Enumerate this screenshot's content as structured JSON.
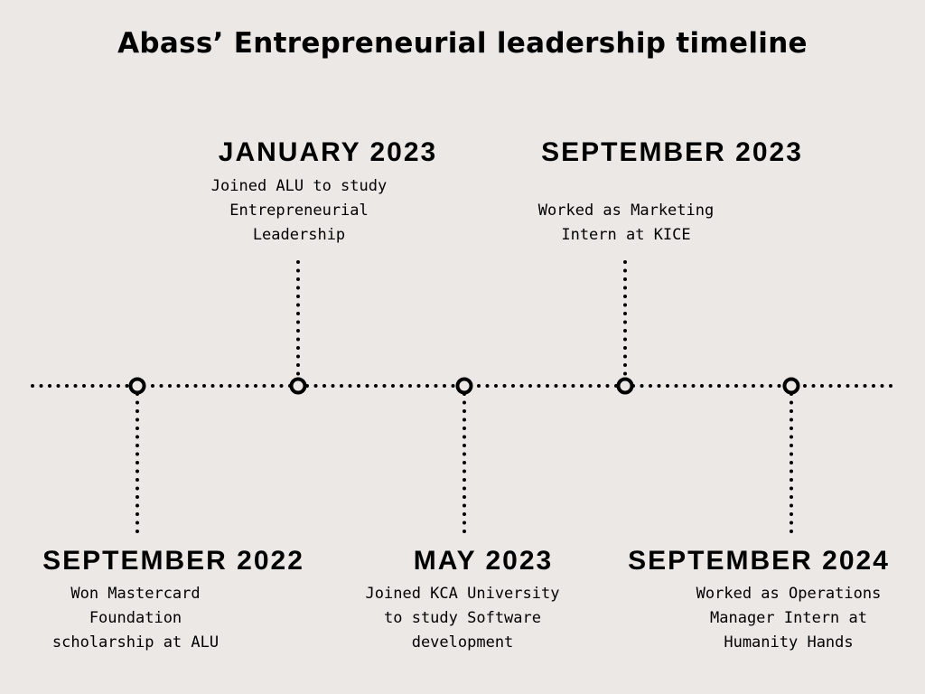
{
  "title": "Abass’ Entrepreneurial leadership timeline",
  "events": [
    {
      "date": "SEPTEMBER 2022",
      "description": "Won Mastercard\nFoundation\nscholarship at ALU"
    },
    {
      "date": "JANUARY 2023",
      "description": "Joined ALU to study\nEntrepreneurial\nLeadership"
    },
    {
      "date": "MAY 2023",
      "description": "Joined KCA University\nto study Software\ndevelopment"
    },
    {
      "date": "SEPTEMBER 2023",
      "description": "Worked as Marketing\nIntern at KICE"
    },
    {
      "date": "SEPTEMBER 2024",
      "description": "Worked as Operations\nManager Intern at\nHumanity Hands"
    }
  ]
}
